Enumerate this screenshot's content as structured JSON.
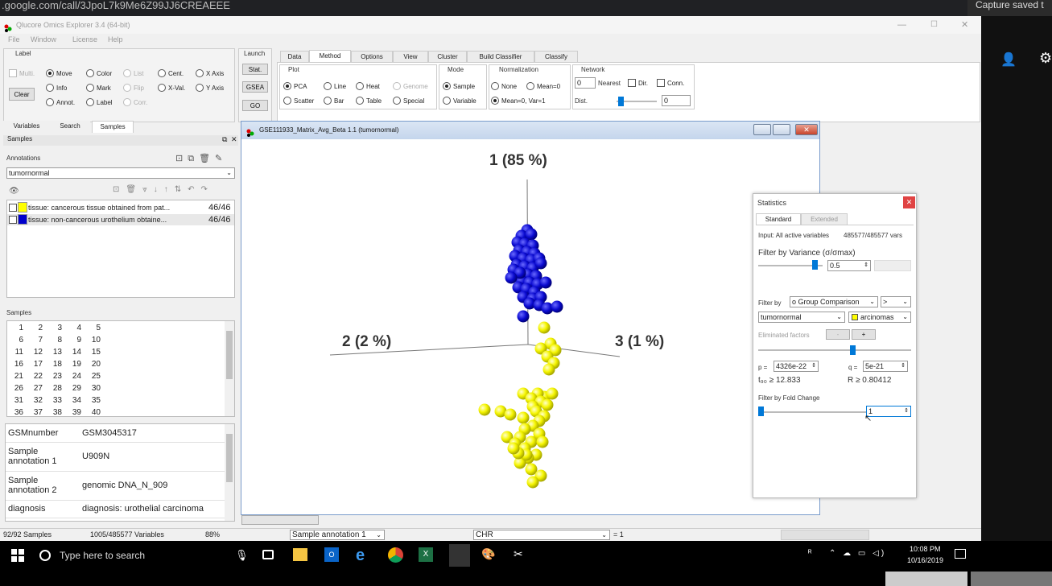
{
  "browser": {
    "url": ".google.com/call/3JpoL7k9Me6Z99JJ6CREAEEE",
    "capture_text": "Capture saved t"
  },
  "app": {
    "title": "Qlucore Omics Explorer 3.4 (64-bit)",
    "menu": [
      "File",
      "Window",
      "License",
      "Help"
    ]
  },
  "toolbox": {
    "label": "Label",
    "multi": "Multi.",
    "clear": "Clear",
    "move": "Move",
    "info": "Info",
    "annot": "Annot.",
    "color": "Color",
    "mark": "Mark",
    "list": "List",
    "flip": "Flip",
    "corr": "Corr.",
    "cent": "Cent.",
    "xval": "X-Val.",
    "xaxis": "X Axis",
    "yaxis": "Y Axis"
  },
  "launch": {
    "label": "Launch",
    "stat": "Stat.",
    "gsea": "GSEA",
    "go": "GO"
  },
  "ribbon": {
    "tabs": [
      "Data",
      "Method",
      "Options",
      "View",
      "Cluster",
      "Build Classifier",
      "Classify"
    ],
    "plot": {
      "label": "Plot",
      "pca": "PCA",
      "line": "Line",
      "heat": "Heat",
      "genome": "Genome",
      "scatter": "Scatter",
      "bar": "Bar",
      "table": "Table",
      "special": "Special"
    },
    "mode": {
      "label": "Mode",
      "sample": "Sample",
      "variable": "Variable"
    },
    "normalization": {
      "label": "Normalization",
      "none": "None",
      "mean0": "Mean=0",
      "meanvar": "Mean=0, Var=1"
    },
    "network": {
      "label": "Network",
      "nearest_value": "0",
      "nearest": "Nearest",
      "dir": "Dir.",
      "conn": "Conn.",
      "dist": "Dist.",
      "dist_value": "0"
    }
  },
  "left": {
    "tabs": [
      "Variables",
      "Search",
      "Samples"
    ],
    "panel_title": "Samples",
    "annotations_label": "Annotations",
    "annotation_select": "tumornormal",
    "legend": [
      {
        "color": "#ffff00",
        "label": "tissue: cancerous tissue obtained from pat...",
        "count": "46/46"
      },
      {
        "color": "#0000cc",
        "label": "tissue: non-cancerous urothelium obtaine...",
        "count": "46/46"
      }
    ],
    "samples_label": "Samples",
    "grid": [
      [
        "1",
        "2",
        "3",
        "4",
        "5"
      ],
      [
        "6",
        "7",
        "8",
        "9",
        "10"
      ],
      [
        "11",
        "12",
        "13",
        "14",
        "15"
      ],
      [
        "16",
        "17",
        "18",
        "19",
        "20"
      ],
      [
        "21",
        "22",
        "23",
        "24",
        "25"
      ],
      [
        "26",
        "27",
        "28",
        "29",
        "30"
      ],
      [
        "31",
        "32",
        "33",
        "34",
        "35"
      ],
      [
        "36",
        "37",
        "38",
        "39",
        "40"
      ]
    ],
    "props": [
      {
        "k": "GSMnumber",
        "v": "GSM3045317"
      },
      {
        "k": "Sample annotation 1",
        "v": "U909N"
      },
      {
        "k": "Sample annotation 2",
        "v": "genomic DNA_N_909"
      },
      {
        "k": "diagnosis",
        "v": "diagnosis: urothelial carcinoma"
      }
    ]
  },
  "plot": {
    "title": "GSE111933_Matrix_Avg_Beta 1.1 (tumornormal)",
    "axis1": "1 (85 %)",
    "axis2": "2 (2 %)",
    "axis3": "3 (1 %)"
  },
  "stats": {
    "title": "Statistics",
    "tabs": [
      "Standard",
      "Extended"
    ],
    "input_label": "Input: All active variables",
    "input_vars": "485577/485577 vars",
    "filter_variance": "Filter by Variance (σ/σmax)",
    "variance_value": "0.5",
    "filter_by": "Filter by",
    "filter_method": "o Group Comparison",
    "filter_op": ">",
    "annotation": "tumornormal",
    "group": "arcinomas",
    "eliminated": "Eliminated factors",
    "minus": "-",
    "plus": "+",
    "p_label": "p =",
    "p_value": "4326e-22",
    "q_label": "q =",
    "q_value": "5e-21",
    "t_value": "t₉₀ ≥ 12.833",
    "r_value": "R ≥ 0.80412",
    "fold_change": "Filter by Fold Change",
    "fold_value": "1"
  },
  "statusbar": {
    "samples": "92/92 Samples",
    "variables": "1005/485577 Variables",
    "zoom": "88%",
    "sample_select": "Sample annotation 1",
    "chr_select": "CHR",
    "eq": "= 1"
  },
  "taskbar": {
    "search": "Type here to search",
    "time": "10:08 PM",
    "date": "10/16/2019"
  },
  "colors": {
    "blue": "#0a0ad0",
    "yellow": "#f5f500"
  }
}
